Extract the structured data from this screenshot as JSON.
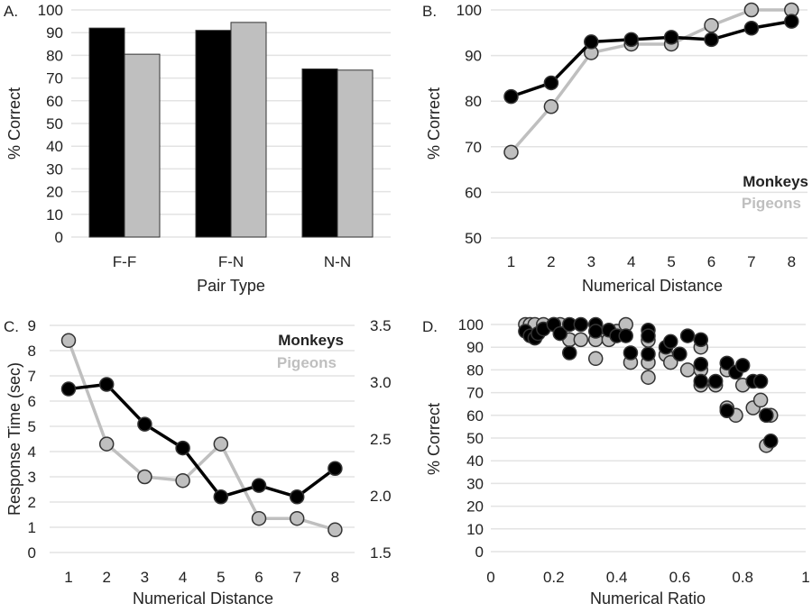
{
  "figure": {
    "series_colors": {
      "Monkeys": "#000000",
      "Pigeons": "#bfbfbf"
    },
    "marker_stroke": "#333333",
    "grid_color": "#e3e3e3"
  },
  "chart_data": [
    {
      "panel": "A.",
      "type": "bar",
      "title": "",
      "xlabel": "Pair Type",
      "ylabel": "% Correct",
      "categories": [
        "F-F",
        "F-N",
        "N-N"
      ],
      "series": [
        {
          "name": "Monkeys",
          "values": [
            92,
            91,
            74
          ]
        },
        {
          "name": "Pigeons",
          "values": [
            80.5,
            94.5,
            73.5
          ]
        }
      ],
      "ylim": [
        0,
        100
      ],
      "yticks": [
        0,
        10,
        20,
        30,
        40,
        50,
        60,
        70,
        80,
        90,
        100
      ],
      "grid": true,
      "legend": "none"
    },
    {
      "panel": "B.",
      "type": "line",
      "xlabel": "Numerical Distance",
      "ylabel": "% Correct",
      "x": [
        1,
        2,
        3,
        4,
        5,
        6,
        7,
        8
      ],
      "series": [
        {
          "name": "Pigeons",
          "values": [
            68.8,
            78.8,
            90.6,
            92.5,
            92.5,
            96.6,
            100,
            100
          ]
        },
        {
          "name": "Monkeys",
          "values": [
            81.0,
            84.0,
            93.0,
            93.5,
            94.0,
            93.5,
            96.0,
            97.5
          ]
        }
      ],
      "ylim": [
        50,
        100
      ],
      "yticks": [
        50,
        60,
        70,
        80,
        90,
        100
      ],
      "grid": true,
      "legend": "bottom-right",
      "legend_entries": [
        "Monkeys",
        "Pigeons"
      ]
    },
    {
      "panel": "C.",
      "type": "line",
      "xlabel": "Numerical Distance",
      "ylabel": "Response Time (sec)",
      "x": [
        1,
        2,
        3,
        4,
        5,
        6,
        7,
        8
      ],
      "series": [
        {
          "name": "Pigeons",
          "axis": "left",
          "values": [
            8.4,
            4.3,
            3.0,
            2.85,
            4.3,
            1.35,
            1.35,
            0.9
          ]
        },
        {
          "name": "Monkeys",
          "axis": "right",
          "values": [
            2.94,
            2.98,
            2.63,
            2.42,
            1.99,
            2.09,
            1.99,
            2.24
          ]
        }
      ],
      "ylim_left": [
        0,
        9
      ],
      "yticks_left": [
        0,
        1,
        2,
        3,
        4,
        5,
        6,
        7,
        8,
        9
      ],
      "ylim_right": [
        1.5,
        3.5
      ],
      "yticks_right": [
        "1.5",
        "2.0",
        "2.5",
        "3.0",
        "3.5"
      ],
      "grid": true,
      "legend": "top-right",
      "legend_entries": [
        "Monkeys",
        "Pigeons"
      ]
    },
    {
      "panel": "D.",
      "type": "scatter",
      "xlabel": "Numerical Ratio",
      "ylabel": "% Correct",
      "xlim": [
        0,
        1
      ],
      "xticks": [
        "0",
        "0.2",
        "0.4",
        "0.6",
        "0.8",
        "1"
      ],
      "ylim": [
        0,
        100
      ],
      "yticks": [
        0,
        10,
        20,
        30,
        40,
        50,
        60,
        70,
        80,
        90,
        100
      ],
      "grid": true,
      "legend": "none",
      "series": [
        {
          "name": "Pigeons",
          "points": [
            [
              0.11,
              100
            ],
            [
              0.125,
              100
            ],
            [
              0.14,
              100
            ],
            [
              0.167,
              100
            ],
            [
              0.2,
              100
            ],
            [
              0.22,
              100
            ],
            [
              0.25,
              93.3
            ],
            [
              0.286,
              93.3
            ],
            [
              0.333,
              93.3
            ],
            [
              0.333,
              85
            ],
            [
              0.375,
              93.3
            ],
            [
              0.4,
              97
            ],
            [
              0.429,
              100
            ],
            [
              0.444,
              83.3
            ],
            [
              0.5,
              93
            ],
            [
              0.5,
              83.3
            ],
            [
              0.5,
              76.7
            ],
            [
              0.556,
              86.7
            ],
            [
              0.571,
              83.3
            ],
            [
              0.625,
              80
            ],
            [
              0.667,
              90
            ],
            [
              0.667,
              80
            ],
            [
              0.667,
              73.3
            ],
            [
              0.714,
              73.3
            ],
            [
              0.75,
              80
            ],
            [
              0.75,
              63.3
            ],
            [
              0.778,
              60
            ],
            [
              0.8,
              73.3
            ],
            [
              0.833,
              63.3
            ],
            [
              0.857,
              66.7
            ],
            [
              0.875,
              60
            ],
            [
              0.889,
              60
            ],
            [
              0.875,
              46.7
            ]
          ]
        },
        {
          "name": "Monkeys",
          "points": [
            [
              0.11,
              97
            ],
            [
              0.125,
              95
            ],
            [
              0.14,
              94
            ],
            [
              0.15,
              96
            ],
            [
              0.167,
              98
            ],
            [
              0.2,
              100
            ],
            [
              0.22,
              96
            ],
            [
              0.25,
              100
            ],
            [
              0.25,
              87.5
            ],
            [
              0.286,
              100
            ],
            [
              0.333,
              100
            ],
            [
              0.333,
              97
            ],
            [
              0.375,
              97.5
            ],
            [
              0.4,
              95
            ],
            [
              0.429,
              95
            ],
            [
              0.444,
              87.5
            ],
            [
              0.5,
              97.5
            ],
            [
              0.5,
              95
            ],
            [
              0.5,
              87
            ],
            [
              0.556,
              90
            ],
            [
              0.571,
              92.5
            ],
            [
              0.6,
              87
            ],
            [
              0.625,
              95
            ],
            [
              0.667,
              93.3
            ],
            [
              0.667,
              82.5
            ],
            [
              0.667,
              75
            ],
            [
              0.714,
              75
            ],
            [
              0.75,
              83
            ],
            [
              0.75,
              62
            ],
            [
              0.778,
              79
            ],
            [
              0.8,
              82
            ],
            [
              0.833,
              75
            ],
            [
              0.857,
              75
            ],
            [
              0.875,
              60
            ],
            [
              0.889,
              48.7
            ]
          ]
        }
      ]
    }
  ]
}
